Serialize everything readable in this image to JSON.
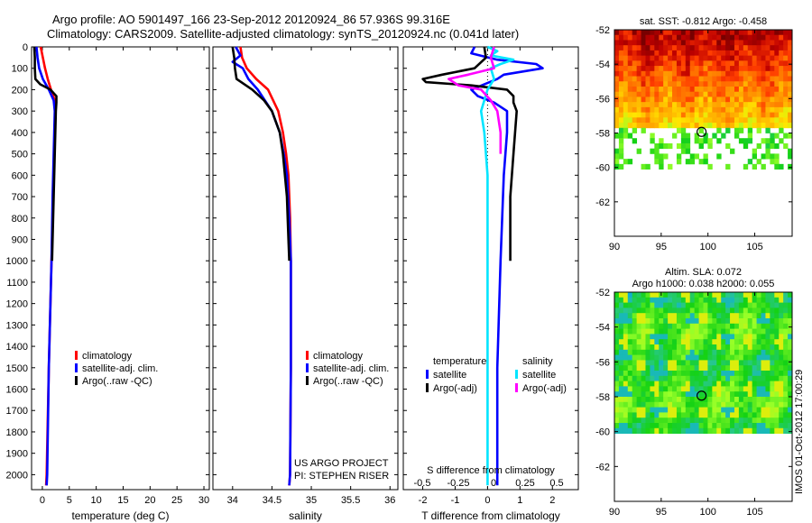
{
  "header": {
    "line1": "Argo profile: AO 5901497_166 23-Sep-2012 20120924_86 57.936S 99.316E",
    "line2": "Climatology: CARS2009. Satellite-adjusted climatology: synTS_20120924.nc (0.041d later)"
  },
  "side_stamp": "IMOS 01-Oct-2012 17:00:29",
  "colors": {
    "climatology": "#ff0000",
    "satellite": "#0000ff",
    "argo": "#000000",
    "salinity_satellite": "#00e5ff",
    "salinity_argo": "#ff00ff"
  },
  "depth_ticks": [
    "0",
    "100",
    "200",
    "300",
    "400",
    "500",
    "600",
    "700",
    "800",
    "900",
    "1000",
    "1100",
    "1200",
    "1300",
    "1400",
    "1500",
    "1600",
    "1700",
    "1800",
    "1900",
    "2000"
  ],
  "chart_data": [
    {
      "type": "line",
      "panel": "temperature",
      "xlabel": "temperature (deg C)",
      "xticks": [
        0,
        5,
        10,
        15,
        20,
        25,
        30
      ],
      "xlim": [
        -2,
        31
      ],
      "ylim": [
        2070,
        0
      ],
      "y_reversed": true,
      "legend": [
        "climatology",
        "satellite-adj. clim.",
        "Argo(..raw -QC)"
      ],
      "legend_colors": [
        "#ff0000",
        "#0000ff",
        "#000000"
      ],
      "legend_position": "lower-right",
      "series": [
        {
          "name": "climatology",
          "color": "#ff0000",
          "depth": [
            0,
            50,
            100,
            150,
            200,
            250,
            300,
            400,
            500,
            700,
            1000,
            1500,
            2000,
            2050
          ],
          "values": [
            -0.3,
            0.1,
            0.5,
            1.0,
            1.6,
            2.3,
            2.4,
            2.3,
            2.2,
            2.0,
            1.7,
            1.2,
            0.8,
            0.7
          ]
        },
        {
          "name": "satellite-adj. clim.",
          "color": "#0000ff",
          "depth": [
            0,
            50,
            100,
            150,
            200,
            250,
            300,
            400,
            500,
            700,
            1000,
            1500,
            2000,
            2050
          ],
          "values": [
            -1.1,
            -0.9,
            -0.6,
            0.1,
            1.2,
            2.1,
            2.3,
            2.2,
            2.1,
            1.9,
            1.7,
            1.2,
            0.9,
            0.8
          ]
        },
        {
          "name": "Argo(..raw -QC)",
          "color": "#000000",
          "depth": [
            0,
            50,
            100,
            150,
            175,
            200,
            230,
            260,
            300,
            400,
            500,
            700,
            900,
            1000
          ],
          "values": [
            -1.5,
            -1.4,
            -1.4,
            -1.3,
            -0.4,
            1.5,
            2.6,
            2.6,
            2.5,
            2.4,
            2.3,
            2.1,
            1.9,
            1.8
          ]
        }
      ]
    },
    {
      "type": "line",
      "panel": "salinity",
      "xlabel": "salinity",
      "xticks": [
        34,
        34.5,
        35,
        35.5,
        36
      ],
      "xlim": [
        33.75,
        36.1
      ],
      "ylim": [
        2070,
        0
      ],
      "y_reversed": true,
      "legend": [
        "climatology",
        "satellite-adj. clim.",
        "Argo(..raw -QC)"
      ],
      "legend_colors": [
        "#ff0000",
        "#0000ff",
        "#000000"
      ],
      "legend_position": "lower-right",
      "annotation": [
        "US ARGO PROJECT",
        "PI: STEPHEN RISER"
      ],
      "series": [
        {
          "name": "climatology",
          "color": "#ff0000",
          "depth": [
            0,
            50,
            100,
            150,
            200,
            300,
            400,
            500,
            600,
            800,
            1000,
            1500,
            2000,
            2050
          ],
          "values": [
            34.1,
            34.12,
            34.18,
            34.3,
            34.45,
            34.58,
            34.64,
            34.68,
            34.71,
            34.73,
            34.74,
            34.74,
            34.73,
            34.72
          ]
        },
        {
          "name": "satellite-adj. clim.",
          "color": "#0000ff",
          "depth": [
            0,
            40,
            70,
            100,
            150,
            200,
            300,
            400,
            500,
            600,
            800,
            1000,
            1500,
            2000,
            2050
          ],
          "values": [
            34.04,
            34.1,
            34.0,
            34.13,
            34.2,
            34.32,
            34.5,
            34.6,
            34.65,
            34.69,
            34.72,
            34.74,
            34.74,
            34.73,
            34.72
          ]
        },
        {
          "name": "Argo(..raw -QC)",
          "color": "#000000",
          "depth": [
            0,
            50,
            100,
            150,
            200,
            250,
            300,
            400,
            500,
            700,
            900,
            1000
          ],
          "values": [
            34.0,
            34.02,
            34.03,
            34.05,
            34.25,
            34.4,
            34.5,
            34.6,
            34.64,
            34.69,
            34.71,
            34.72
          ]
        }
      ]
    },
    {
      "type": "line",
      "panel": "difference from climatology",
      "xlabel": "T difference from climatology",
      "xticks": [
        -2,
        -1,
        0,
        1,
        2
      ],
      "xlim": [
        -2.6,
        2.8
      ],
      "secondary_xlabel": "S difference from climatology",
      "secondary_xticks": [
        "-0.5",
        "-0.25",
        "0",
        "0.25",
        "0.5"
      ],
      "ylim": [
        2070,
        0
      ],
      "y_reversed": true,
      "legend_groups": [
        {
          "title": "temperature",
          "items": [
            "satellite",
            "Argo(-adj)"
          ],
          "colors": [
            "#0000ff",
            "#000000"
          ]
        },
        {
          "title": "salinity",
          "items": [
            "satellite",
            "Argo(-adj)"
          ],
          "colors": [
            "#00e5ff",
            "#ff00ff"
          ]
        }
      ],
      "legend_position": "lower-center",
      "zero_line": true,
      "series": [
        {
          "name": "satellite",
          "color": "#0000ff",
          "depth": [
            0,
            30,
            60,
            80,
            100,
            130,
            150,
            200,
            230,
            260,
            300,
            400,
            500,
            600,
            800,
            1000,
            1500,
            2000,
            2050
          ],
          "values": [
            -0.4,
            -0.5,
            0.3,
            1.5,
            1.7,
            0.5,
            0.3,
            -0.5,
            -0.3,
            0.2,
            0.6,
            0.6,
            0.55,
            0.5,
            0.45,
            0.4,
            0.3,
            0.3,
            0.3
          ]
        },
        {
          "name": "Argo(-adj)",
          "color": "#000000",
          "depth": [
            0,
            50,
            100,
            130,
            150,
            165,
            180,
            200,
            230,
            260,
            300,
            400,
            500,
            700,
            900,
            1000
          ],
          "values": [
            -0.1,
            -0.05,
            -0.4,
            -1.4,
            -2.0,
            -1.9,
            -0.5,
            0.6,
            0.8,
            0.8,
            0.9,
            0.85,
            0.8,
            0.7,
            0.7,
            0.7
          ]
        },
        {
          "name": "satellite",
          "color": "#00e5ff",
          "depth": [
            0,
            20,
            40,
            60,
            80,
            100,
            150,
            200,
            300,
            400,
            500,
            600,
            800,
            1000,
            1500,
            2000,
            2050
          ],
          "values": [
            0.0,
            0.3,
            0.1,
            0.8,
            0.4,
            0.1,
            0.2,
            0.0,
            -0.2,
            -0.1,
            -0.05,
            0.0,
            0.0,
            0.0,
            0.0,
            0.0,
            0.0
          ]
        },
        {
          "name": "Argo(-adj)",
          "color": "#ff00ff",
          "depth": [
            0,
            50,
            100,
            130,
            150,
            180,
            200,
            250,
            300,
            400,
            500
          ],
          "values": [
            0.2,
            0.1,
            0.2,
            -0.6,
            -1.2,
            -0.9,
            -0.2,
            0.1,
            0.3,
            0.4,
            0.4
          ]
        }
      ]
    },
    {
      "type": "heatmap",
      "panel": "sat. SST map",
      "title": "sat. SST: -0.812 Argo: -0.458",
      "xticks": [
        90,
        95,
        100,
        105
      ],
      "yticks": [
        -52,
        -54,
        -56,
        -58,
        -60,
        -62
      ],
      "xlim": [
        90,
        109
      ],
      "ylim": [
        -64,
        -52
      ],
      "marker": {
        "lon": 99.316,
        "lat": -57.936
      },
      "land_or_missing_below_lat": -57.9
    },
    {
      "type": "heatmap",
      "panel": "altimetry SLA map",
      "title": [
        "Altim. SLA: 0.072",
        "Argo h1000: 0.038 h2000: 0.055"
      ],
      "xticks": [
        90,
        95,
        100,
        105
      ],
      "yticks": [
        -52,
        -54,
        -56,
        -58,
        -60,
        -62
      ],
      "xlim": [
        90,
        109
      ],
      "ylim": [
        -64,
        -52
      ],
      "marker": {
        "lon": 99.316,
        "lat": -57.936
      },
      "data_extent_lat": [
        -60,
        -52
      ]
    }
  ]
}
